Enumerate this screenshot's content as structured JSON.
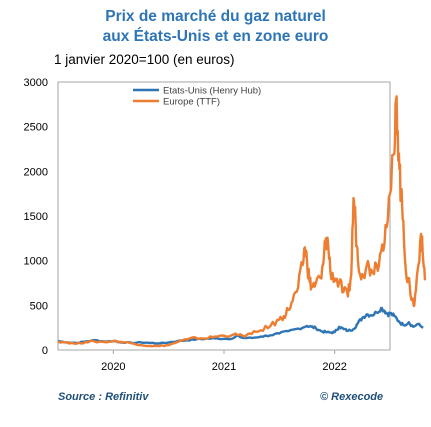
{
  "header": {
    "title_line1": "Prix de marché du gaz naturel",
    "title_line2": "aux États-Unis et en zone euro",
    "subtitle": "1 janvier 2020=100 (en euros)"
  },
  "footer": {
    "source": "Source : Refinitiv",
    "credit": "© Rexecode"
  },
  "colors": {
    "us": "#2e75b6",
    "eu": "#ed7d31",
    "title": "#2e75b6",
    "axis": "#a6a6a6"
  },
  "chart_data": {
    "type": "line",
    "title": "Prix de marché du gaz naturel aux États-Unis et en zone euro",
    "subtitle": "1 janvier 2020=100 (en euros)",
    "ylim": [
      0,
      3000
    ],
    "yticks": [
      0,
      500,
      1000,
      1500,
      2000,
      2500,
      3000
    ],
    "ytick_labels": [
      "0",
      "500",
      "1000",
      "1500",
      "2000",
      "2500",
      "3000"
    ],
    "xlim": [
      2019.5,
      2022.5
    ],
    "xticks": [
      2020,
      2021,
      2022
    ],
    "xtick_labels": [
      "2020",
      "2021",
      "2022"
    ],
    "legend_position": "top-left",
    "series": [
      {
        "name": "Etats-Unis (Henry Hub)",
        "color": "#2e75b6",
        "points": [
          [
            2019.5,
            100
          ],
          [
            2019.58,
            85
          ],
          [
            2019.67,
            80
          ],
          [
            2019.75,
            95
          ],
          [
            2019.83,
            110
          ],
          [
            2019.92,
            95
          ],
          [
            2020.0,
            100
          ],
          [
            2020.08,
            85
          ],
          [
            2020.17,
            80
          ],
          [
            2020.25,
            85
          ],
          [
            2020.33,
            80
          ],
          [
            2020.42,
            75
          ],
          [
            2020.5,
            85
          ],
          [
            2020.58,
            100
          ],
          [
            2020.67,
            110
          ],
          [
            2020.75,
            120
          ],
          [
            2020.83,
            125
          ],
          [
            2020.92,
            130
          ],
          [
            2021.0,
            125
          ],
          [
            2021.08,
            130
          ],
          [
            2021.12,
            160
          ],
          [
            2021.17,
            135
          ],
          [
            2021.25,
            135
          ],
          [
            2021.33,
            150
          ],
          [
            2021.42,
            165
          ],
          [
            2021.5,
            185
          ],
          [
            2021.58,
            210
          ],
          [
            2021.67,
            240
          ],
          [
            2021.75,
            270
          ],
          [
            2021.79,
            260
          ],
          [
            2021.83,
            245
          ],
          [
            2021.88,
            210
          ],
          [
            2021.92,
            200
          ],
          [
            2021.96,
            195
          ],
          [
            2022.0,
            200
          ],
          [
            2022.04,
            260
          ],
          [
            2022.08,
            235
          ],
          [
            2022.12,
            215
          ],
          [
            2022.17,
            235
          ],
          [
            2022.21,
            300
          ],
          [
            2022.25,
            360
          ],
          [
            2022.29,
            400
          ],
          [
            2022.33,
            390
          ],
          [
            2022.38,
            420
          ],
          [
            2022.42,
            470
          ],
          [
            2022.45,
            440
          ],
          [
            2022.48,
            400
          ],
          [
            2022.5,
            410
          ],
          [
            2022.54,
            380
          ],
          [
            2022.58,
            320
          ],
          [
            2022.62,
            280
          ],
          [
            2022.67,
            310
          ],
          [
            2022.71,
            260
          ],
          [
            2022.75,
            290
          ],
          [
            2022.8,
            250
          ]
        ]
      },
      {
        "name": "Europe (TTF)",
        "color": "#ed7d31",
        "points": [
          [
            2019.5,
            95
          ],
          [
            2019.58,
            85
          ],
          [
            2019.67,
            70
          ],
          [
            2019.75,
            90
          ],
          [
            2019.83,
            95
          ],
          [
            2019.92,
            90
          ],
          [
            2020.0,
            100
          ],
          [
            2020.08,
            90
          ],
          [
            2020.17,
            75
          ],
          [
            2020.25,
            55
          ],
          [
            2020.33,
            45
          ],
          [
            2020.42,
            45
          ],
          [
            2020.5,
            55
          ],
          [
            2020.58,
            90
          ],
          [
            2020.67,
            120
          ],
          [
            2020.75,
            135
          ],
          [
            2020.83,
            130
          ],
          [
            2020.92,
            150
          ],
          [
            2021.0,
            160
          ],
          [
            2021.08,
            170
          ],
          [
            2021.17,
            160
          ],
          [
            2021.25,
            180
          ],
          [
            2021.33,
            220
          ],
          [
            2021.42,
            270
          ],
          [
            2021.5,
            340
          ],
          [
            2021.54,
            380
          ],
          [
            2021.58,
            450
          ],
          [
            2021.62,
            550
          ],
          [
            2021.67,
            700
          ],
          [
            2021.71,
            950
          ],
          [
            2021.73,
            1150
          ],
          [
            2021.75,
            1000
          ],
          [
            2021.77,
            800
          ],
          [
            2021.79,
            700
          ],
          [
            2021.83,
            750
          ],
          [
            2021.88,
            800
          ],
          [
            2021.9,
            1000
          ],
          [
            2021.92,
            1250
          ],
          [
            2021.94,
            1200
          ],
          [
            2021.96,
            900
          ],
          [
            2022.0,
            800
          ],
          [
            2022.04,
            750
          ],
          [
            2022.08,
            650
          ],
          [
            2022.12,
            600
          ],
          [
            2022.15,
            850
          ],
          [
            2022.17,
            1700
          ],
          [
            2022.19,
            1400
          ],
          [
            2022.21,
            1000
          ],
          [
            2022.25,
            850
          ],
          [
            2022.29,
            950
          ],
          [
            2022.33,
            900
          ],
          [
            2022.38,
            950
          ],
          [
            2022.42,
            1100
          ],
          [
            2022.46,
            1400
          ],
          [
            2022.5,
            1750
          ],
          [
            2022.54,
            2200
          ],
          [
            2022.56,
            2840
          ],
          [
            2022.58,
            2200
          ],
          [
            2022.6,
            1700
          ],
          [
            2022.62,
            1450
          ],
          [
            2022.65,
            800
          ],
          [
            2022.68,
            700
          ],
          [
            2022.7,
            560
          ],
          [
            2022.72,
            500
          ],
          [
            2022.75,
            900
          ],
          [
            2022.78,
            1300
          ],
          [
            2022.8,
            1000
          ],
          [
            2022.82,
            800
          ]
        ]
      }
    ]
  }
}
